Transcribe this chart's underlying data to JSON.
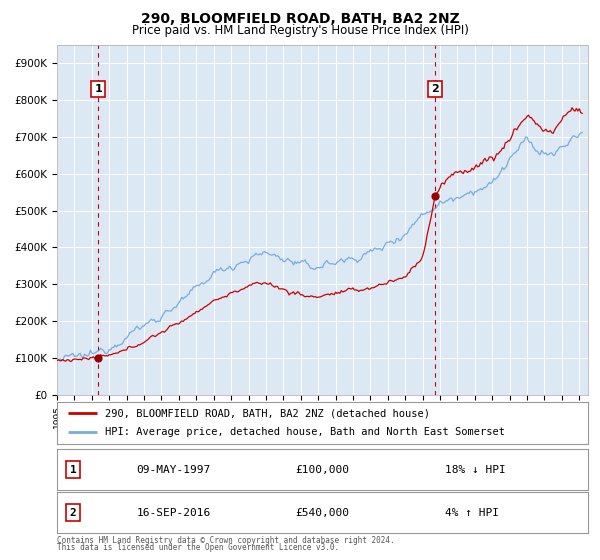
{
  "title": "290, BLOOMFIELD ROAD, BATH, BA2 2NZ",
  "subtitle": "Price paid vs. HM Land Registry's House Price Index (HPI)",
  "title_fontsize": 10,
  "subtitle_fontsize": 8.5,
  "background_color": "#ffffff",
  "plot_bg_color": "#dce9f5",
  "grid_color": "#ffffff",
  "ylim": [
    0,
    950000
  ],
  "xlim_start": 1995.0,
  "xlim_end": 2025.5,
  "yticks": [
    0,
    100000,
    200000,
    300000,
    400000,
    500000,
    600000,
    700000,
    800000,
    900000
  ],
  "ytick_labels": [
    "£0",
    "£100K",
    "£200K",
    "£300K",
    "£400K",
    "£500K",
    "£600K",
    "£700K",
    "£800K",
    "£900K"
  ],
  "xticks": [
    1995,
    1996,
    1997,
    1998,
    1999,
    2000,
    2001,
    2002,
    2003,
    2004,
    2005,
    2006,
    2007,
    2008,
    2009,
    2010,
    2011,
    2012,
    2013,
    2014,
    2015,
    2016,
    2017,
    2018,
    2019,
    2020,
    2021,
    2022,
    2023,
    2024,
    2025
  ],
  "red_line_color": "#cc0000",
  "blue_line_color": "#7aabda",
  "red_dot_color": "#990000",
  "dashed_line_color": "#cc0000",
  "purchase1_x": 1997.36,
  "purchase1_y": 100000,
  "purchase1_label": "1",
  "purchase2_x": 2016.72,
  "purchase2_y": 540000,
  "purchase2_label": "2",
  "legend_red_label": "290, BLOOMFIELD ROAD, BATH, BA2 2NZ (detached house)",
  "legend_blue_label": "HPI: Average price, detached house, Bath and North East Somerset",
  "table_row1": [
    "1",
    "09-MAY-1997",
    "£100,000",
    "18% ↓ HPI"
  ],
  "table_row2": [
    "2",
    "16-SEP-2016",
    "£540,000",
    "4% ↑ HPI"
  ],
  "footer1": "Contains HM Land Registry data © Crown copyright and database right 2024.",
  "footer2": "This data is licensed under the Open Government Licence v3.0."
}
